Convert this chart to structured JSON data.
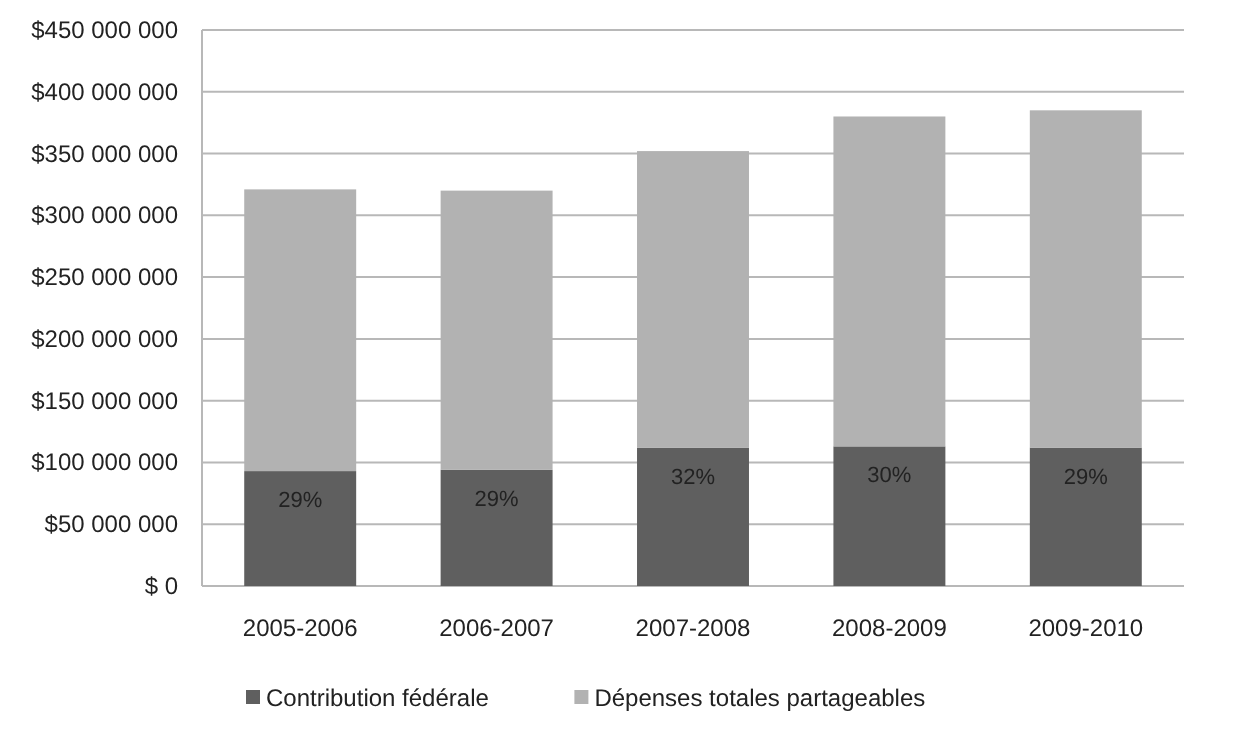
{
  "chart_data": {
    "type": "bar",
    "stacked": true,
    "categories": [
      "2005-2006",
      "2006-2007",
      "2007-2008",
      "2008-2009",
      "2009-2010"
    ],
    "series": [
      {
        "name": "Contribution fédérale",
        "color": "#5f5f5f",
        "values": [
          93000000,
          94000000,
          112000000,
          113000000,
          112000000
        ]
      },
      {
        "name": "Dépenses totales partageables",
        "color": "#b2b2b2",
        "values": [
          228000000,
          226000000,
          240000000,
          267000000,
          273000000
        ]
      }
    ],
    "ylim": [
      0,
      450000000
    ],
    "yticks": [
      {
        "value": 0,
        "label": "$ 0"
      },
      {
        "value": 50000000,
        "label": "$50 000 000"
      },
      {
        "value": 100000000,
        "label": "$100 000 000"
      },
      {
        "value": 150000000,
        "label": "$150 000 000"
      },
      {
        "value": 200000000,
        "label": "$200 000 000"
      },
      {
        "value": 250000000,
        "label": "$250 000 000"
      },
      {
        "value": 300000000,
        "label": "$300 000 000"
      },
      {
        "value": 350000000,
        "label": "$350 000 000"
      },
      {
        "value": 400000000,
        "label": "$400 000 000"
      },
      {
        "value": 450000000,
        "label": "$450 000 000"
      }
    ],
    "annotations": [
      {
        "text": "29%",
        "x": "2005-2006",
        "y": 93000000
      },
      {
        "text": "29%",
        "x": "2006-2007",
        "y": 94000000
      },
      {
        "text": "32%",
        "x": "2007-2008",
        "y": 112000000
      },
      {
        "text": "30%",
        "x": "2008-2009",
        "y": 113000000
      },
      {
        "text": "29%",
        "x": "2009-2010",
        "y": 112000000
      }
    ],
    "grid": "y",
    "legend": "bottom"
  }
}
